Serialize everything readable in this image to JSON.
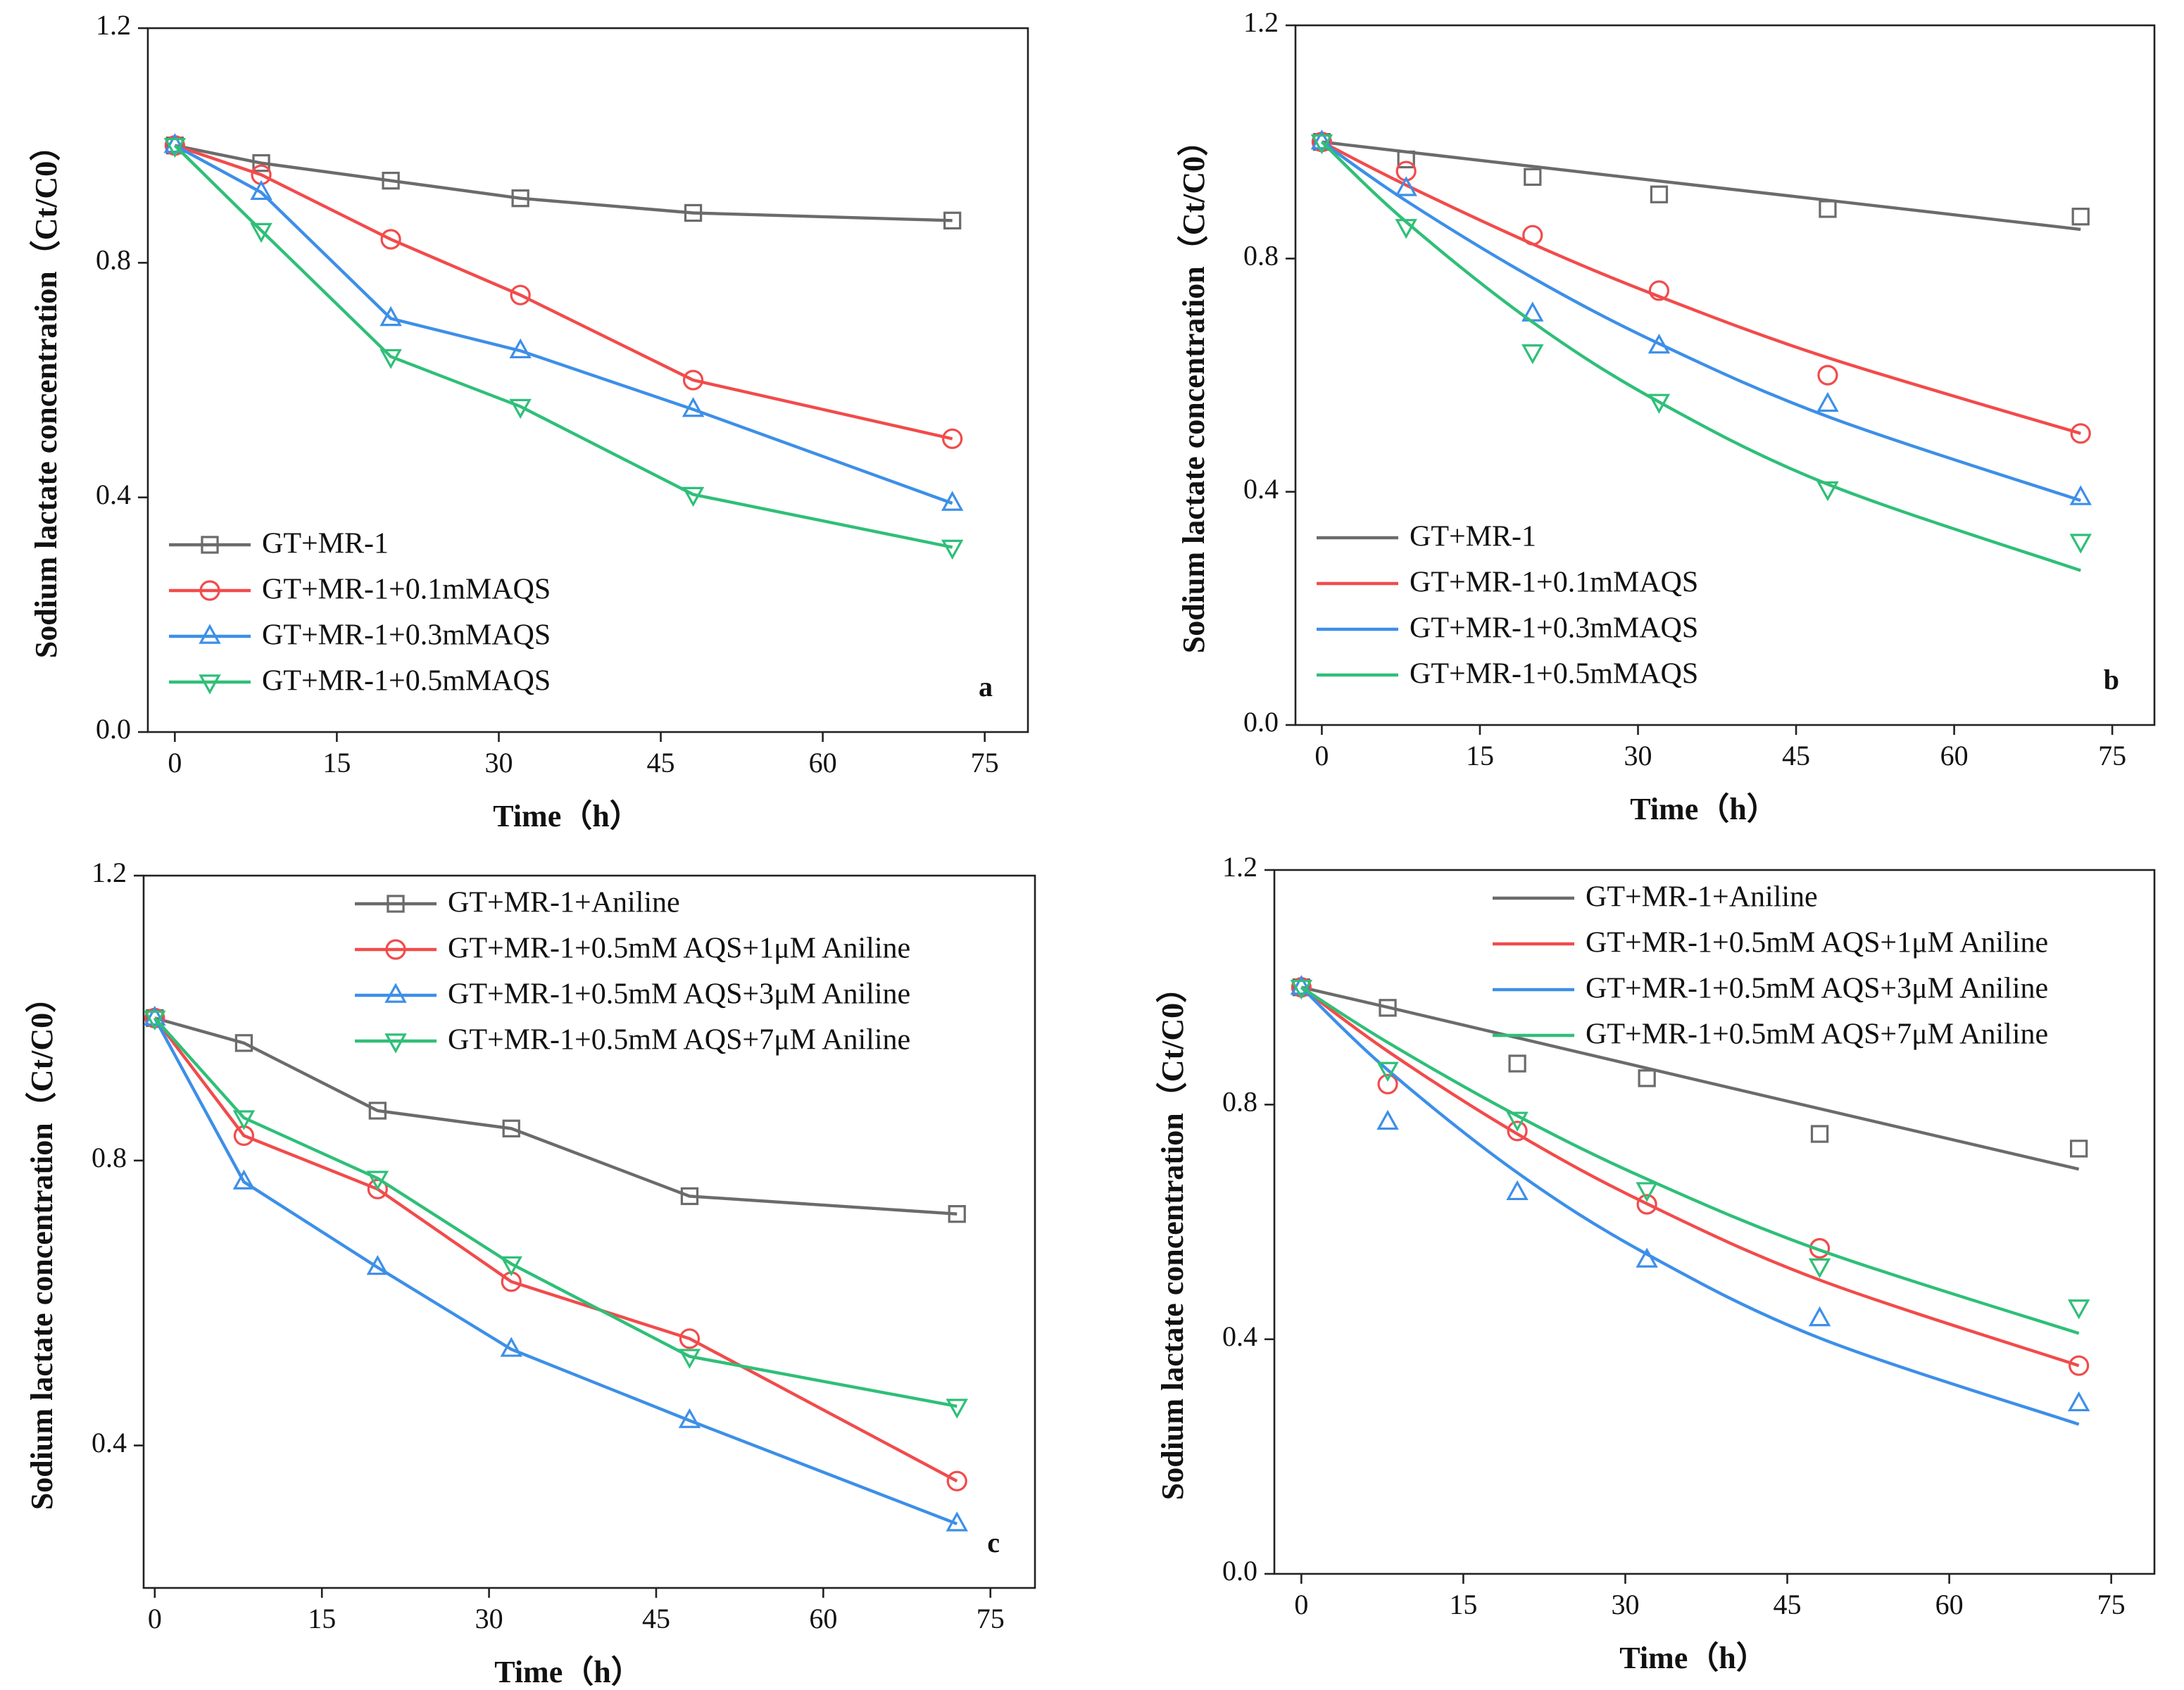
{
  "chart_data": [
    {
      "type": "line",
      "x_label": "Time（h）",
      "y_label": "Sodium lactate concentration（Ct/C0）",
      "panel_label": "a",
      "legend": "lower left",
      "x": [
        0,
        8,
        20,
        32,
        48,
        72
      ],
      "xlim": [
        -2.5,
        79
      ],
      "xticks": [
        0,
        15,
        30,
        45,
        60,
        75
      ],
      "ylim": [
        0,
        1.2
      ],
      "yticks": [
        {
          "value": 0,
          "label": "0.0"
        },
        0.4,
        0.8,
        1.2
      ],
      "series": [
        {
          "name": "GT+MR-1",
          "color": "#6b6b6b",
          "marker": "square",
          "values": [
            1.0,
            0.97,
            0.94,
            0.91,
            0.885,
            0.872
          ]
        },
        {
          "name": "GT+MR-1+0.1mMAQS",
          "color": "#f24b4b",
          "marker": "circle",
          "values": [
            1.0,
            0.95,
            0.84,
            0.745,
            0.6,
            0.5
          ]
        },
        {
          "name": "GT+MR-1+0.3mMAQS",
          "color": "#3d8fe8",
          "marker": "triangle-up",
          "values": [
            1.0,
            0.92,
            0.705,
            0.65,
            0.55,
            0.39
          ]
        },
        {
          "name": "GT+MR-1+0.5mMAQS",
          "color": "#2fbf78",
          "marker": "triangle-down",
          "values": [
            1.0,
            0.855,
            0.64,
            0.555,
            0.405,
            0.315
          ]
        }
      ]
    },
    {
      "type": "scatter",
      "x_label": "Time（h）",
      "y_label": "Sodium lactate concentration（Ct/C0）",
      "panel_label": "b",
      "legend": "lower left",
      "x": [
        0,
        8,
        20,
        32,
        48,
        72
      ],
      "xlim": [
        -2.5,
        79
      ],
      "xticks": [
        0,
        15,
        30,
        45,
        60,
        75
      ],
      "ylim": [
        0,
        1.2
      ],
      "yticks": [
        {
          "value": 0,
          "label": "0.0"
        },
        0.4,
        0.8,
        1.2
      ],
      "series": [
        {
          "name": "GT+MR-1",
          "color": "#6b6b6b",
          "marker": "square",
          "values": [
            1.0,
            0.97,
            0.94,
            0.91,
            0.885,
            0.872
          ],
          "fit": [
            1.0,
            0.983,
            0.958,
            0.933,
            0.9,
            0.85
          ]
        },
        {
          "name": "GT+MR-1+0.1mMAQS",
          "color": "#f24b4b",
          "marker": "circle",
          "values": [
            1.0,
            0.95,
            0.84,
            0.745,
            0.6,
            0.5
          ],
          "fit": [
            1.0,
            0.926,
            0.825,
            0.735,
            0.63,
            0.5
          ]
        },
        {
          "name": "GT+MR-1+0.3mMAQS",
          "color": "#3d8fe8",
          "marker": "triangle-up",
          "values": [
            1.0,
            0.92,
            0.705,
            0.65,
            0.55,
            0.39
          ],
          "fit": [
            1.0,
            0.899,
            0.767,
            0.654,
            0.529,
            0.385
          ]
        },
        {
          "name": "GT+MR-1+0.5mMAQS",
          "color": "#2fbf78",
          "marker": "triangle-down",
          "values": [
            1.0,
            0.855,
            0.64,
            0.555,
            0.405,
            0.315
          ],
          "fit": [
            1.0,
            0.863,
            0.691,
            0.554,
            0.413,
            0.265
          ]
        }
      ]
    },
    {
      "type": "line",
      "x_label": "Time（h）",
      "y_label": "Sodium lactate concentration（Ct/C0）",
      "panel_label": "c",
      "legend": "upper right",
      "x": [
        0,
        8,
        20,
        32,
        48,
        72
      ],
      "xlim": [
        -1,
        79
      ],
      "xticks": [
        0,
        15,
        30,
        45,
        60,
        75
      ],
      "ylim": [
        0.2,
        1.2
      ],
      "yticks": [
        0.4,
        0.8,
        1.2
      ],
      "series": [
        {
          "name": "GT+MR-1+Aniline",
          "color": "#6b6b6b",
          "marker": "square",
          "values": [
            1.0,
            0.965,
            0.87,
            0.845,
            0.75,
            0.725
          ]
        },
        {
          "name": "GT+MR-1+0.5mM AQS+1μM Aniline",
          "color": "#f24b4b",
          "marker": "circle",
          "values": [
            1.0,
            0.835,
            0.76,
            0.63,
            0.55,
            0.35
          ]
        },
        {
          "name": "GT+MR-1+0.5mM AQS+3μM Aniline",
          "color": "#3d8fe8",
          "marker": "triangle-up",
          "values": [
            1.0,
            0.77,
            0.65,
            0.535,
            0.435,
            0.29
          ]
        },
        {
          "name": "GT+MR-1+0.5mM AQS+7μM Aniline",
          "color": "#2fbf78",
          "marker": "triangle-down",
          "values": [
            1.0,
            0.86,
            0.775,
            0.655,
            0.525,
            0.455
          ]
        }
      ]
    },
    {
      "type": "scatter",
      "x_label": "Time（h）",
      "y_label": "Sodium lactate concentration（Ct/C0）",
      "legend": "upper right",
      "x": [
        0,
        8,
        20,
        32,
        48,
        72
      ],
      "xlim": [
        -2.5,
        79
      ],
      "xticks": [
        0,
        15,
        30,
        45,
        60,
        75
      ],
      "ylim": [
        0,
        1.2
      ],
      "yticks": [
        {
          "value": 0,
          "label": "0.0"
        },
        0.4,
        0.8,
        1.2
      ],
      "series": [
        {
          "name": "GT+MR-1+Aniline",
          "color": "#6b6b6b",
          "marker": "square",
          "values": [
            1.0,
            0.965,
            0.87,
            0.845,
            0.75,
            0.725
          ],
          "fit": [
            1.0,
            0.966,
            0.914,
            0.862,
            0.793,
            0.69
          ]
        },
        {
          "name": "GT+MR-1+0.5mM AQS+1μM Aniline",
          "color": "#f24b4b",
          "marker": "circle",
          "values": [
            1.0,
            0.835,
            0.755,
            0.63,
            0.555,
            0.355
          ],
          "fit": [
            1.0,
            0.891,
            0.75,
            0.631,
            0.501,
            0.355
          ]
        },
        {
          "name": "GT+MR-1+0.5mM AQS+3μM Aniline",
          "color": "#3d8fe8",
          "marker": "triangle-up",
          "values": [
            1.0,
            0.77,
            0.65,
            0.535,
            0.435,
            0.29
          ],
          "fit": [
            1.0,
            0.859,
            0.684,
            0.545,
            0.402,
            0.255
          ]
        },
        {
          "name": "GT+MR-1+0.5mM AQS+7μM Aniline",
          "color": "#2fbf78",
          "marker": "triangle-down",
          "values": [
            1.0,
            0.86,
            0.775,
            0.655,
            0.525,
            0.455
          ],
          "fit": [
            1.0,
            0.906,
            0.781,
            0.673,
            0.552,
            0.41
          ]
        }
      ]
    }
  ]
}
